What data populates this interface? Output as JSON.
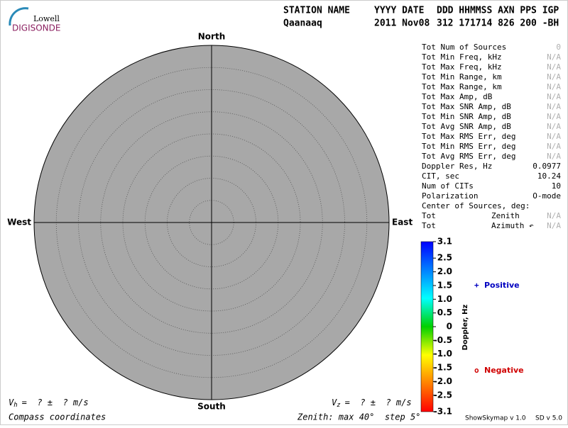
{
  "logo": {
    "top": "Lowell",
    "bottom": "DIGISONDE"
  },
  "header": {
    "columns": [
      "STATION NAME",
      "YYYY DATE",
      "DDD HHMMSS AXN PPS IGP"
    ],
    "values": [
      "Qaanaaq",
      "2011 Nov08",
      "312 171714 826 200 -BH"
    ]
  },
  "chart_data": {
    "type": "skymap",
    "fill": "#a8a8a8",
    "directions": {
      "north": "North",
      "south": "South",
      "east": "East",
      "west": "West"
    },
    "zenith_max": 40,
    "zenith_step": 5,
    "zenith_label": "Zenith: max 40°  step 5°",
    "coordinates": "Compass coordinates",
    "vh": {
      "symbol": "V",
      "sub": "h",
      "text": "=  ? ±  ? m/s"
    },
    "vz": {
      "symbol": "V",
      "sub": "z",
      "text": "=  ? ±  ? m/s"
    },
    "colorbar": {
      "label": "Doppler, Hz",
      "lim": [
        -3.1,
        3.1
      ],
      "ticks": [
        3.1,
        2.5,
        {
          "value": 2,
          "label": "2.0"
        },
        1.5,
        {
          "value": 1,
          "label": "1.0"
        },
        0.5,
        0,
        -0.5,
        {
          "value": -1,
          "label": "-1.0"
        },
        -1.5,
        {
          "value": -2,
          "label": "-2.0"
        },
        -2.5,
        -3.1
      ],
      "colors": [
        "#ff0000",
        "#ff8000",
        "#ffff00",
        "#00d000",
        "#00ffff",
        "#0080ff",
        "#0000ff"
      ]
    },
    "legend": [
      {
        "symbol": "+",
        "label": "Positive",
        "color": "#0000c0"
      },
      {
        "symbol": "o",
        "label": "Negative",
        "color": "#d00000"
      }
    ]
  },
  "stats": [
    {
      "label": "Tot Num of Sources",
      "value": "0",
      "color": "#b0b0b0"
    },
    {
      "label": "Tot Min Freq, kHz",
      "value": "N/A",
      "color": "#b0b0b0"
    },
    {
      "label": "Tot Max Freq, kHz",
      "value": "N/A",
      "color": "#b0b0b0"
    },
    {
      "label": "Tot Min Range, km",
      "value": "N/A",
      "color": "#b0b0b0"
    },
    {
      "label": "Tot Max Range, km",
      "value": "N/A",
      "color": "#b0b0b0"
    },
    {
      "label": "Tot Max Amp, dB",
      "value": "N/A",
      "color": "#b0b0b0"
    },
    {
      "label": "Tot Max SNR Amp, dB",
      "value": "N/A",
      "color": "#b0b0b0"
    },
    {
      "label": "Tot Min SNR Amp, dB",
      "value": "N/A",
      "color": "#b0b0b0"
    },
    {
      "label": "Tot Avg SNR Amp, dB",
      "value": "N/A",
      "color": "#b0b0b0"
    },
    {
      "label": "Tot Max RMS Err, deg",
      "value": "N/A",
      "color": "#b0b0b0"
    },
    {
      "label": "Tot Min RMS Err, deg",
      "value": "N/A",
      "color": "#b0b0b0"
    },
    {
      "label": "Tot Avg RMS Err, deg",
      "value": "N/A",
      "color": "#b0b0b0"
    },
    {
      "label": "Doppler Res, Hz",
      "value": "0.0977",
      "color": "#000000"
    },
    {
      "label": "CIT, sec",
      "value": "10.24",
      "color": "#000000"
    },
    {
      "label": "Num of CITs",
      "value": "10",
      "color": "#000000"
    },
    {
      "label": "Polarization",
      "value": "O-mode",
      "color": "#000000"
    },
    {
      "label": "Center of Sources, deg:"
    },
    {
      "label": "Tot",
      "label2": "Zenith",
      "value": "N/A",
      "color": "#b0b0b0"
    },
    {
      "label": "Tot",
      "label2": "Azimuth ↶",
      "value": "N/A",
      "color": "#b0b0b0"
    }
  ],
  "footer": {
    "program": "ShowSkymap v 1.0",
    "version": "SD v 5.0"
  }
}
